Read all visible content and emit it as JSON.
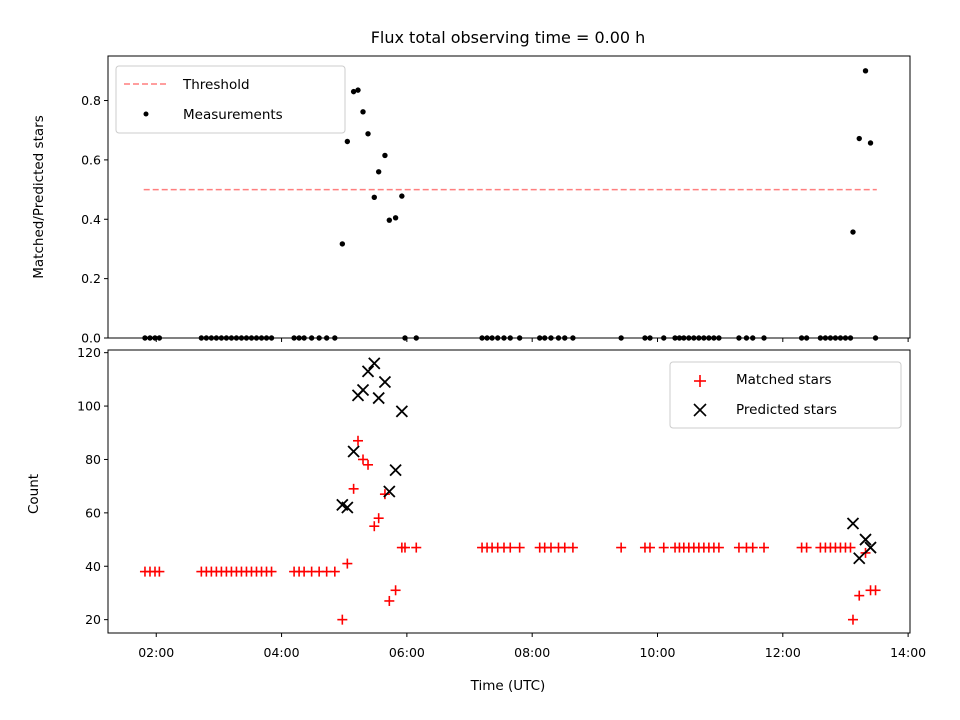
{
  "chart_data": [
    {
      "type": "scatter",
      "title": "Flux total observing time = 0.00 h",
      "xlabel": "",
      "ylabel": "Matched/Predicted stars",
      "xlim": [
        1.23,
        14.03
      ],
      "ylim": [
        0,
        0.95
      ],
      "yticks": [
        0.0,
        0.2,
        0.4,
        0.6,
        0.8
      ],
      "ytick_labels": [
        "0.0",
        "0.2",
        "0.4",
        "0.6",
        "0.8"
      ],
      "xticks": [
        2,
        4,
        6,
        8,
        10,
        12,
        14
      ],
      "grid": false,
      "legend": {
        "placement": "top-left",
        "entries": [
          "Threshold",
          "Measurements"
        ]
      },
      "threshold": {
        "name": "Threshold",
        "value": 0.5,
        "x": [
          1.8,
          13.5
        ],
        "color": "#ff7f7f",
        "style": "dashed"
      },
      "measurements": {
        "name": "Measurements",
        "color": "#000000",
        "x": [
          1.82,
          1.9,
          1.98,
          2.05,
          2.72,
          2.8,
          2.88,
          2.96,
          3.04,
          3.12,
          3.2,
          3.28,
          3.36,
          3.44,
          3.52,
          3.6,
          3.68,
          3.76,
          3.84,
          4.2,
          4.28,
          4.36,
          4.48,
          4.6,
          4.72,
          4.85,
          4.97,
          5.05,
          5.15,
          5.22,
          5.3,
          5.38,
          5.48,
          5.55,
          5.65,
          5.72,
          5.82,
          5.92,
          5.97,
          6.15,
          7.2,
          7.28,
          7.36,
          7.45,
          7.55,
          7.65,
          7.8,
          8.12,
          8.2,
          8.3,
          8.42,
          8.52,
          8.65,
          9.42,
          9.8,
          9.88,
          10.1,
          10.28,
          10.35,
          10.42,
          10.5,
          10.58,
          10.66,
          10.74,
          10.82,
          10.9,
          10.98,
          11.3,
          11.42,
          11.52,
          11.7,
          12.3,
          12.38,
          12.6,
          12.68,
          12.76,
          12.84,
          12.92,
          13.0,
          13.08,
          13.12,
          13.22,
          13.32,
          13.4,
          13.48
        ],
        "y": [
          0,
          0,
          0,
          0,
          0,
          0,
          0,
          0,
          0,
          0,
          0,
          0,
          0,
          0,
          0,
          0,
          0,
          0,
          0,
          0,
          0,
          0,
          0,
          0,
          0,
          0,
          0.317,
          0.662,
          0.83,
          0.835,
          0.762,
          0.688,
          0.474,
          0.56,
          0.615,
          0.397,
          0.405,
          0.478,
          0,
          0,
          0,
          0,
          0,
          0,
          0,
          0,
          0,
          0,
          0,
          0,
          0,
          0,
          0,
          0,
          0,
          0,
          0,
          0,
          0,
          0,
          0,
          0,
          0,
          0,
          0,
          0,
          0,
          0,
          0,
          0,
          0,
          0,
          0,
          0,
          0,
          0,
          0,
          0,
          0,
          0,
          0.357,
          0.672,
          0.9,
          0.657,
          0
        ]
      }
    },
    {
      "type": "scatter",
      "title": "",
      "xlabel": "Time (UTC)",
      "ylabel": "Count",
      "xlim": [
        1.23,
        14.03
      ],
      "ylim": [
        15,
        121
      ],
      "yticks": [
        20,
        40,
        60,
        80,
        100,
        120
      ],
      "ytick_labels": [
        "20",
        "40",
        "60",
        "80",
        "100",
        "120"
      ],
      "xticks": [
        2,
        4,
        6,
        8,
        10,
        12,
        14
      ],
      "xtick_labels": [
        "02:00",
        "04:00",
        "06:00",
        "08:00",
        "10:00",
        "12:00",
        "14:00"
      ],
      "grid": false,
      "legend": {
        "placement": "top-right",
        "entries": [
          "Matched stars",
          "Predicted stars"
        ]
      },
      "series": [
        {
          "name": "Matched stars",
          "marker": "+",
          "color": "#ff0000",
          "x": [
            1.82,
            1.9,
            1.98,
            2.05,
            2.72,
            2.8,
            2.88,
            2.96,
            3.04,
            3.12,
            3.2,
            3.28,
            3.36,
            3.44,
            3.52,
            3.6,
            3.68,
            3.76,
            3.84,
            4.2,
            4.28,
            4.36,
            4.48,
            4.6,
            4.72,
            4.85,
            4.97,
            5.05,
            5.15,
            5.22,
            5.3,
            5.38,
            5.48,
            5.55,
            5.65,
            5.72,
            5.82,
            5.92,
            5.97,
            6.15,
            7.2,
            7.28,
            7.36,
            7.45,
            7.55,
            7.65,
            7.8,
            8.12,
            8.2,
            8.3,
            8.42,
            8.52,
            8.65,
            9.42,
            9.8,
            9.88,
            10.1,
            10.28,
            10.35,
            10.42,
            10.5,
            10.58,
            10.66,
            10.74,
            10.82,
            10.9,
            10.98,
            11.3,
            11.42,
            11.52,
            11.7,
            12.3,
            12.38,
            12.6,
            12.68,
            12.76,
            12.84,
            12.92,
            13.0,
            13.08,
            13.12,
            13.22,
            13.32,
            13.4,
            13.48
          ],
          "y": [
            38,
            38,
            38,
            38,
            38,
            38,
            38,
            38,
            38,
            38,
            38,
            38,
            38,
            38,
            38,
            38,
            38,
            38,
            38,
            38,
            38,
            38,
            38,
            38,
            38,
            38,
            20,
            41,
            69,
            87,
            80,
            78,
            55,
            58,
            67,
            27,
            31,
            47,
            47,
            47,
            47,
            47,
            47,
            47,
            47,
            47,
            47,
            47,
            47,
            47,
            47,
            47,
            47,
            47,
            47,
            47,
            47,
            47,
            47,
            47,
            47,
            47,
            47,
            47,
            47,
            47,
            47,
            47,
            47,
            47,
            47,
            47,
            47,
            47,
            47,
            47,
            47,
            47,
            47,
            47,
            20,
            29,
            45,
            31,
            31
          ]
        },
        {
          "name": "Predicted stars",
          "marker": "x",
          "color": "#000000",
          "x": [
            4.97,
            5.05,
            5.15,
            5.22,
            5.3,
            5.38,
            5.48,
            5.55,
            5.65,
            5.72,
            5.82,
            5.92,
            13.12,
            13.22,
            13.32,
            13.4
          ],
          "y": [
            63,
            62,
            83,
            104,
            106,
            113,
            116,
            103,
            109,
            68,
            76,
            98,
            56,
            43,
            50,
            47
          ]
        }
      ]
    }
  ]
}
